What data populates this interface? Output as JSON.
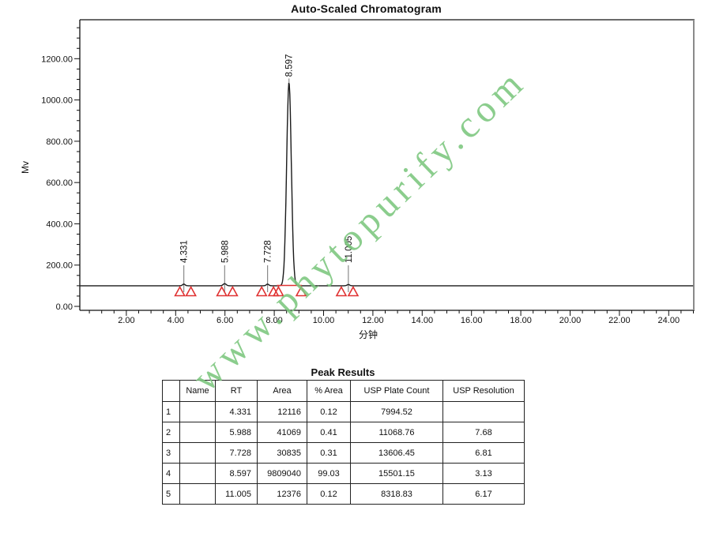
{
  "page": {
    "title": "Auto-Scaled Chromatogram"
  },
  "watermark": {
    "text": "www.phytopurify.com",
    "color": "#7cc77e"
  },
  "chart_data": {
    "type": "line",
    "title": "Auto-Scaled Chromatogram",
    "xlabel": "分钟",
    "ylabel": "Mv",
    "x_range": [
      0,
      25.0
    ],
    "y_range": [
      -25,
      1400
    ],
    "x_major_ticks": [
      2,
      4,
      6,
      8,
      10,
      12,
      14,
      16,
      18,
      20,
      22,
      24
    ],
    "x_minor_step": 0.5,
    "y_major_ticks": [
      0,
      200,
      400,
      600,
      800,
      1000,
      1200
    ],
    "y_minor_step": 50,
    "baseline_mv": 100,
    "trace_color": "#1a1a1a",
    "marker_color": "#e03232",
    "leader_color": "#8a8a8a",
    "peaks": [
      {
        "rt": 4.331,
        "label": "4.331",
        "apex_mv": 108,
        "sigma_min": 0.05,
        "marker_start_rt": 4.17,
        "marker_end_rt": 4.62
      },
      {
        "rt": 5.988,
        "label": "5.988",
        "apex_mv": 110,
        "sigma_min": 0.06,
        "marker_start_rt": 5.87,
        "marker_end_rt": 6.31
      },
      {
        "rt": 7.728,
        "label": "7.728",
        "apex_mv": 108,
        "sigma_min": 0.05,
        "marker_start_rt": 7.49,
        "marker_end_rt": 7.97
      },
      {
        "rt": 8.597,
        "label": "8.597",
        "apex_mv": 1085,
        "sigma_min": 0.095,
        "marker_start_rt": 8.17,
        "marker_end_rt": 9.09,
        "integration_line": true
      },
      {
        "rt": 11.005,
        "label": "11.005",
        "apex_mv": 106,
        "sigma_min": 0.05,
        "marker_start_rt": 10.72,
        "marker_end_rt": 11.2
      }
    ]
  },
  "peak_table": {
    "title": "Peak Results",
    "columns": [
      "",
      "Name",
      "RT",
      "Area",
      "% Area",
      "USP Plate Count",
      "USP Resolution"
    ],
    "rows": [
      [
        "1",
        "",
        "4.331",
        "12116",
        "0.12",
        "7994.52",
        ""
      ],
      [
        "2",
        "",
        "5.988",
        "41069",
        "0.41",
        "11068.76",
        "7.68"
      ],
      [
        "3",
        "",
        "7.728",
        "30835",
        "0.31",
        "13606.45",
        "6.81"
      ],
      [
        "4",
        "",
        "8.597",
        "9809040",
        "99.03",
        "15501.15",
        "3.13"
      ],
      [
        "5",
        "",
        "11.005",
        "12376",
        "0.12",
        "8318.83",
        "6.17"
      ]
    ]
  }
}
